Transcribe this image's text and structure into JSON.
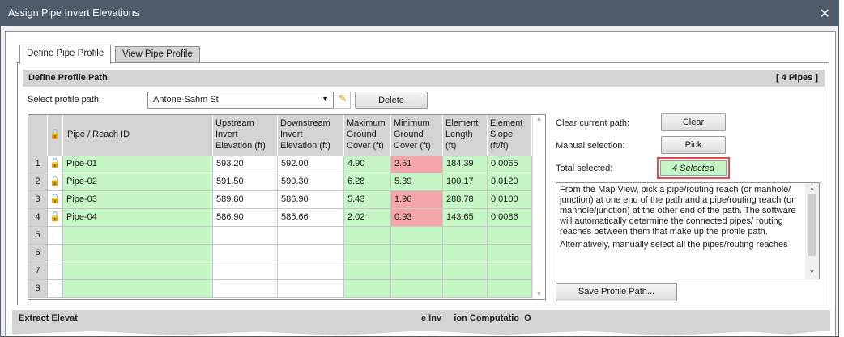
{
  "window": {
    "title": "Assign Pipe Invert Elevations",
    "close": "✕"
  },
  "tabs": [
    {
      "label": "Define Pipe Profile",
      "active": true
    },
    {
      "label": "View Pipe Profile",
      "active": false
    }
  ],
  "section": {
    "title": "Define Profile Path",
    "count": "[ 4 Pipes ]"
  },
  "profile": {
    "label": "Select profile path:",
    "value": "Antone-Sahm St",
    "delete": "Delete"
  },
  "grid": {
    "headers": [
      "Pipe / Reach ID",
      "Upstream Invert Elevation (ft)",
      "Downstream Invert Elevation (ft)",
      "Maximum Ground Cover (ft)",
      "Minimum Ground Cover (ft)",
      "Element Length (ft)",
      "Element Slope (ft/ft)"
    ],
    "rows": [
      {
        "n": "1",
        "id": "Pipe-01",
        "up": "593.20",
        "down": "592.00",
        "max": "4.90",
        "min": "2.51",
        "len": "184.39",
        "slope": "0.0065",
        "min_low": true
      },
      {
        "n": "2",
        "id": "Pipe-02",
        "up": "591.50",
        "down": "590.30",
        "max": "6.28",
        "min": "5.39",
        "len": "100.17",
        "slope": "0.0120",
        "min_low": false
      },
      {
        "n": "3",
        "id": "Pipe-03",
        "up": "589.80",
        "down": "586.90",
        "max": "5.43",
        "min": "1.96",
        "len": "288.78",
        "slope": "0.0100",
        "min_low": true
      },
      {
        "n": "4",
        "id": "Pipe-04",
        "up": "586.90",
        "down": "585.66",
        "max": "2.02",
        "min": "0.93",
        "len": "143.65",
        "slope": "0.0086",
        "min_low": true
      },
      {
        "n": "5"
      },
      {
        "n": "6"
      },
      {
        "n": "7"
      },
      {
        "n": "8"
      }
    ]
  },
  "right": {
    "clear_label": "Clear current path:",
    "clear": "Clear",
    "manual_label": "Manual selection:",
    "pick": "Pick",
    "total_label": "Total selected:",
    "total": "4 Selected",
    "help": "From the Map View, pick a pipe/routing reach (or manhole/ junction) at one end of the path and a pipe/routing reach (or manhole/junction) at the other end of the path. The software will automatically determine the connected pipes/ routing reaches between them that make up the profile path.",
    "help2": "Alternatively, manually select all the pipes/routing reaches",
    "save": "Save Profile Path..."
  },
  "bottom": {
    "left": "Extract Elevat",
    "right": "e Inv     ion Computatio  O"
  }
}
